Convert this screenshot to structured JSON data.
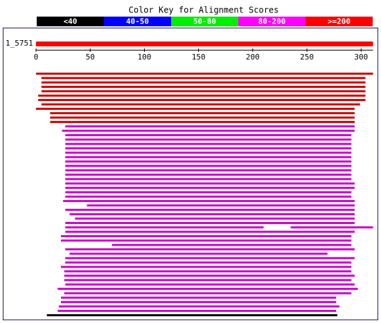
{
  "chart_data": {
    "type": "range-bar",
    "title": "Color Key for Alignment Scores",
    "key": [
      {
        "label": "<40",
        "color": "#000000"
      },
      {
        "label": "40-50",
        "color": "#0000ff"
      },
      {
        "label": "50-80",
        "color": "#00ee00"
      },
      {
        "label": "80-200",
        "color": "#ff00ff"
      },
      {
        "label": ">=200",
        "color": "#ff0000"
      }
    ],
    "query_label": "1_5751",
    "query_length": 311,
    "query_color": "#ff0000",
    "xlim": [
      0,
      311
    ],
    "xticks": [
      0,
      50,
      100,
      150,
      200,
      250,
      300
    ],
    "rows": [
      {
        "color": "#cc0000",
        "segments": [
          [
            0,
            311
          ]
        ]
      },
      {
        "color": "#cc0000",
        "segments": [
          [
            5,
            304
          ]
        ]
      },
      {
        "color": "#cc0000",
        "segments": [
          [
            5,
            304
          ]
        ]
      },
      {
        "color": "#cc0000",
        "segments": [
          [
            5,
            304
          ]
        ]
      },
      {
        "color": "#cc0000",
        "segments": [
          [
            5,
            304
          ]
        ]
      },
      {
        "color": "#cc0000",
        "segments": [
          [
            2,
            304
          ]
        ]
      },
      {
        "color": "#cc0000",
        "segments": [
          [
            2,
            304
          ]
        ]
      },
      {
        "color": "#cc0000",
        "segments": [
          [
            5,
            299
          ]
        ]
      },
      {
        "color": "#cc0000",
        "segments": [
          [
            0,
            294
          ]
        ]
      },
      {
        "color": "#cc0000",
        "segments": [
          [
            13,
            294
          ]
        ]
      },
      {
        "color": "#cc0000",
        "segments": [
          [
            13,
            294
          ]
        ]
      },
      {
        "color": "#cc0000",
        "segments": [
          [
            13,
            294
          ]
        ]
      },
      {
        "color": "#cc00cc",
        "segments": [
          [
            27,
            294
          ]
        ]
      },
      {
        "color": "#cc00cc",
        "segments": [
          [
            24,
            294
          ]
        ]
      },
      {
        "color": "#cc00cc",
        "segments": [
          [
            27,
            291
          ]
        ]
      },
      {
        "color": "#cc00cc",
        "segments": [
          [
            27,
            291
          ]
        ]
      },
      {
        "color": "#cc00cc",
        "segments": [
          [
            27,
            291
          ]
        ]
      },
      {
        "color": "#cc00cc",
        "segments": [
          [
            27,
            291
          ]
        ]
      },
      {
        "color": "#cc00cc",
        "segments": [
          [
            27,
            291
          ]
        ]
      },
      {
        "color": "#cc00cc",
        "segments": [
          [
            27,
            291
          ]
        ]
      },
      {
        "color": "#cc00cc",
        "segments": [
          [
            27,
            291
          ]
        ]
      },
      {
        "color": "#cc00cc",
        "segments": [
          [
            27,
            291
          ]
        ]
      },
      {
        "color": "#cc00cc",
        "segments": [
          [
            27,
            291
          ]
        ]
      },
      {
        "color": "#cc00cc",
        "segments": [
          [
            27,
            291
          ]
        ]
      },
      {
        "color": "#cc00cc",
        "segments": [
          [
            27,
            291
          ]
        ]
      },
      {
        "color": "#cc00cc",
        "segments": [
          [
            27,
            294
          ]
        ]
      },
      {
        "color": "#cc00cc",
        "segments": [
          [
            27,
            294
          ]
        ]
      },
      {
        "color": "#cc00cc",
        "segments": [
          [
            27,
            291
          ]
        ]
      },
      {
        "color": "#cc00cc",
        "segments": [
          [
            27,
            291
          ]
        ]
      },
      {
        "color": "#cc00cc",
        "segments": [
          [
            25,
            294
          ]
        ]
      },
      {
        "color": "#cc00cc",
        "segments": [
          [
            47,
            294
          ]
        ]
      },
      {
        "color": "#cc00cc",
        "segments": [
          [
            27,
            294
          ]
        ]
      },
      {
        "color": "#cc00cc",
        "segments": [
          [
            31,
            294
          ]
        ]
      },
      {
        "color": "#cc00cc",
        "segments": [
          [
            36,
            294
          ]
        ]
      },
      {
        "color": "#cc00cc",
        "segments": [
          [
            27,
            294
          ]
        ]
      },
      {
        "color": "#cc00cc",
        "segments": [
          [
            27,
            210
          ],
          [
            235,
            311
          ]
        ]
      },
      {
        "color": "#cc00cc",
        "segments": [
          [
            27,
            294
          ]
        ]
      },
      {
        "color": "#cc00cc",
        "segments": [
          [
            23,
            291
          ]
        ]
      },
      {
        "color": "#cc00cc",
        "segments": [
          [
            23,
            291
          ]
        ]
      },
      {
        "color": "#cc00cc",
        "segments": [
          [
            70,
            291
          ]
        ]
      },
      {
        "color": "#cc00cc",
        "segments": [
          [
            27,
            294
          ]
        ]
      },
      {
        "color": "#cc00cc",
        "segments": [
          [
            31,
            269
          ]
        ]
      },
      {
        "color": "#cc00cc",
        "segments": [
          [
            27,
            294
          ]
        ]
      },
      {
        "color": "#cc00cc",
        "segments": [
          [
            27,
            291
          ]
        ]
      },
      {
        "color": "#cc00cc",
        "segments": [
          [
            23,
            291
          ]
        ]
      },
      {
        "color": "#cc00cc",
        "segments": [
          [
            26,
            291
          ]
        ]
      },
      {
        "color": "#cc00cc",
        "segments": [
          [
            26,
            294
          ]
        ]
      },
      {
        "color": "#cc00cc",
        "segments": [
          [
            26,
            291
          ]
        ]
      },
      {
        "color": "#cc00cc",
        "segments": [
          [
            27,
            294
          ]
        ]
      },
      {
        "color": "#cc00cc",
        "segments": [
          [
            20,
            297
          ]
        ]
      },
      {
        "color": "#cc00cc",
        "segments": [
          [
            26,
            291
          ]
        ]
      },
      {
        "color": "#cc00cc",
        "segments": [
          [
            23,
            277
          ]
        ]
      },
      {
        "color": "#cc00cc",
        "segments": [
          [
            23,
            277
          ]
        ]
      },
      {
        "color": "#cc00cc",
        "segments": [
          [
            21,
            280
          ]
        ]
      },
      {
        "color": "#cc00cc",
        "segments": [
          [
            20,
            277
          ]
        ]
      },
      {
        "color": "#10",
        "segments": [
          [
            10,
            278
          ]
        ]
      }
    ]
  }
}
